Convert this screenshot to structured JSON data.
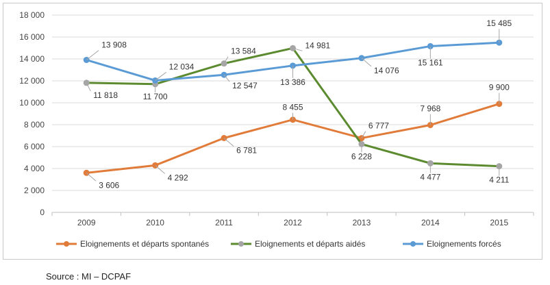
{
  "chart_data": {
    "type": "line",
    "title": "",
    "xlabel": "",
    "ylabel": "",
    "ylim": [
      0,
      18000
    ],
    "y_ticks": [
      0,
      2000,
      4000,
      6000,
      8000,
      10000,
      12000,
      14000,
      16000,
      18000
    ],
    "y_tick_labels": [
      "0",
      "2 000",
      "4 000",
      "6 000",
      "8 000",
      "10 000",
      "12 000",
      "14 000",
      "16 000",
      "18 000"
    ],
    "categories": [
      "2009",
      "2010",
      "2011",
      "2012",
      "2013",
      "2014",
      "2015"
    ],
    "grid": true,
    "legend_position": "bottom",
    "series": [
      {
        "name": "Eloignements et départs spontanés",
        "color": "#E07B39",
        "values": [
          3606,
          4292,
          6781,
          8455,
          6777,
          7968,
          9900
        ],
        "labels": [
          "3 606",
          "4 292",
          "6 781",
          "8 455",
          "6 777",
          "7 968",
          "9 900"
        ]
      },
      {
        "name": "Eloignements et départs aidés",
        "color": "#5B8A2F",
        "marker_color": "#A5A5A5",
        "values": [
          11818,
          11700,
          13584,
          14981,
          6228,
          4477,
          4211
        ],
        "labels": [
          "11 818",
          "11 700",
          "13 584",
          "14 981",
          "6 228",
          "4 477",
          "4 211"
        ]
      },
      {
        "name": "Eloignements forcés",
        "color": "#5B9BD5",
        "values": [
          13908,
          12034,
          12547,
          13386,
          14076,
          15161,
          15485
        ],
        "labels": [
          "13 908",
          "12 034",
          "12 547",
          "13 386",
          "14 076",
          "15 161",
          "15 485"
        ]
      }
    ]
  },
  "source": "Source : MI – DCPAF"
}
